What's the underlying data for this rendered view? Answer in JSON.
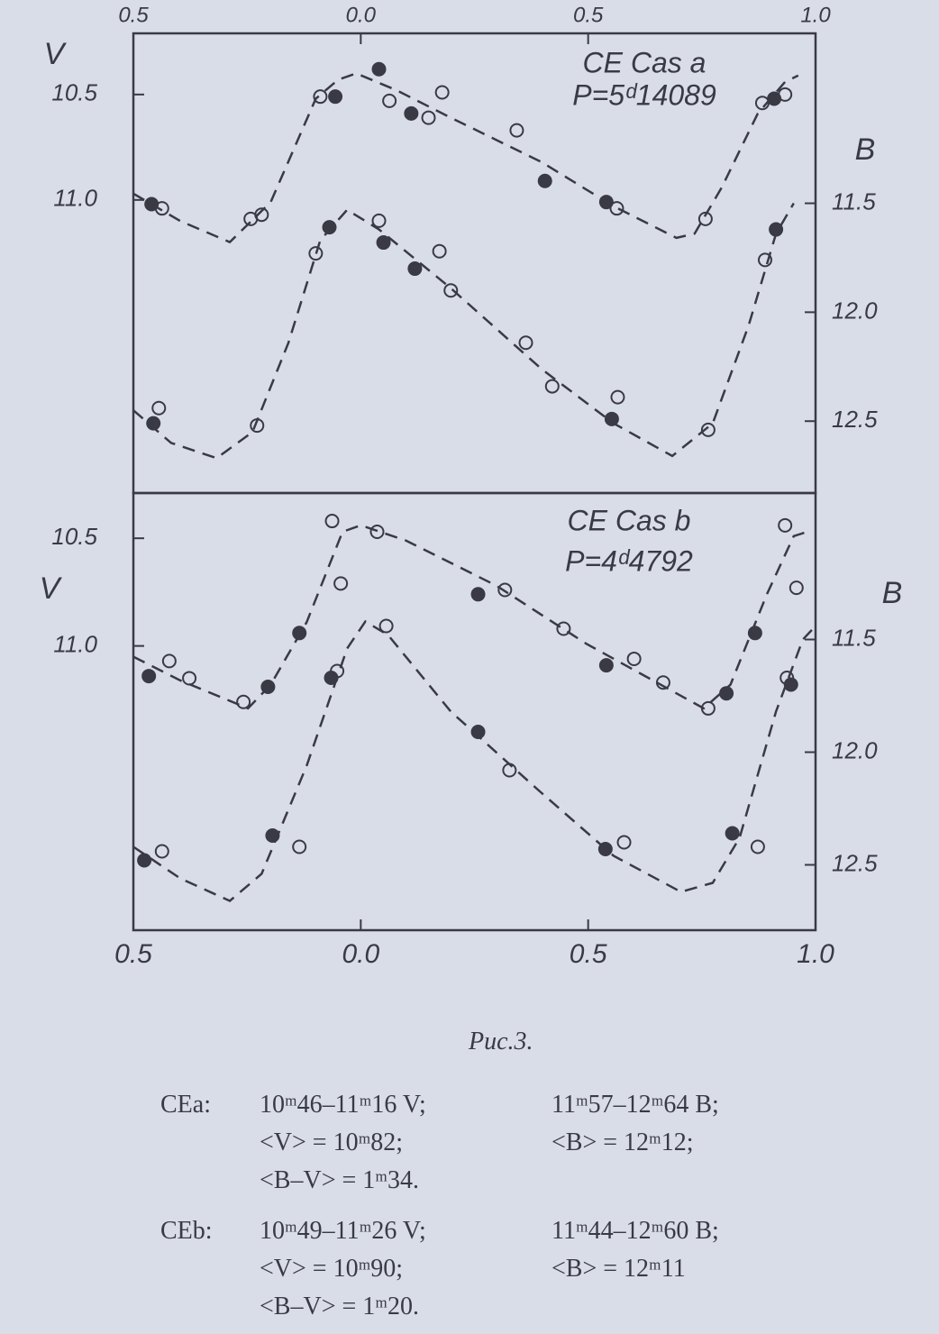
{
  "chart_data": [
    {
      "type": "scatter",
      "xaxis": "top",
      "ylabel": "V",
      "y2label": "B",
      "annotations": [
        "CE Cas a",
        "P=5ᵈ14089"
      ],
      "xlim": [
        -0.5,
        1.0
      ],
      "xticks": [
        {
          "value": -0.5,
          "label": "0.5"
        },
        {
          "value": 0,
          "label": "0.0"
        },
        0.5,
        {
          "value": 1,
          "label": "1.0"
        }
      ],
      "ylim": [
        12.39,
        10.21
      ],
      "yticks": [
        10.5,
        {
          "value": 11,
          "label": "11.0"
        }
      ],
      "y2lim": [
        12.83,
        10.72
      ],
      "y2ticks": [
        11.5,
        {
          "value": 12,
          "label": "12.0"
        },
        12.5
      ],
      "series": [
        {
          "marker": "open",
          "color": "#3a3a44",
          "axis": "y",
          "x": [
            -0.437,
            -0.242,
            -0.218,
            -0.089,
            0.063,
            0.149,
            0.179,
            0.343,
            0.563,
            0.758,
            0.883,
            0.933
          ],
          "values": [
            11.04,
            11.09,
            11.07,
            10.51,
            10.53,
            10.61,
            10.49,
            10.67,
            11.04,
            11.09,
            10.54,
            10.5
          ]
        },
        {
          "marker": "filled",
          "color": "#3a3a44",
          "axis": "y",
          "x": [
            -0.46,
            -0.056,
            0.04,
            0.111,
            0.405,
            0.54,
            0.909
          ],
          "values": [
            11.02,
            10.51,
            10.38,
            10.59,
            10.91,
            11.01,
            10.52
          ]
        },
        {
          "marker": "open",
          "color": "#3a3a44",
          "axis": "y2",
          "x": [
            -0.444,
            -0.228,
            -0.099,
            0.04,
            0.173,
            0.198,
            0.363,
            0.421,
            0.565,
            0.764,
            0.889
          ],
          "values": [
            12.44,
            12.52,
            11.73,
            11.58,
            11.72,
            11.9,
            12.14,
            12.34,
            12.39,
            12.54,
            11.76
          ]
        },
        {
          "marker": "filled",
          "color": "#3a3a44",
          "axis": "y2",
          "x": [
            -0.456,
            -0.069,
            0.05,
            0.119,
            0.552,
            0.913
          ],
          "values": [
            12.51,
            11.61,
            11.68,
            11.8,
            12.49,
            11.62
          ]
        },
        {
          "style": "dashed",
          "color": "#3a3a44",
          "axis": "y",
          "x": [
            -0.5,
            -0.397,
            -0.288,
            -0.198,
            -0.099,
            -0.05,
            -0.01,
            0.079,
            0.198,
            0.397,
            0.556,
            0.694,
            0.734,
            0.794,
            0.873,
            0.933,
            0.962
          ],
          "values": [
            10.97,
            11.1,
            11.2,
            11.01,
            10.52,
            10.43,
            10.4,
            10.48,
            10.61,
            10.82,
            11.03,
            11.18,
            11.16,
            10.94,
            10.59,
            10.44,
            10.41
          ]
        },
        {
          "style": "dashed",
          "color": "#3a3a44",
          "axis": "y2",
          "x": [
            -0.5,
            -0.417,
            -0.317,
            -0.238,
            -0.159,
            -0.089,
            -0.03,
            0.04,
            0.198,
            0.397,
            0.556,
            0.685,
            0.774,
            0.853,
            0.913,
            0.952
          ],
          "values": [
            12.45,
            12.6,
            12.67,
            12.55,
            12.14,
            11.67,
            11.53,
            11.62,
            11.89,
            12.26,
            12.51,
            12.66,
            12.51,
            12.06,
            11.64,
            11.5
          ]
        }
      ]
    },
    {
      "type": "scatter",
      "xaxis": "bottom",
      "ylabel": "V",
      "y2label": "B",
      "annotations": [
        "CE Cas b",
        "P=4ᵈ4792"
      ],
      "xlim": [
        -0.5,
        1.0
      ],
      "xticks": [
        {
          "value": -0.5,
          "label": "0.5"
        },
        {
          "value": 0,
          "label": "0.0"
        },
        0.5,
        {
          "value": 1,
          "label": "1.0"
        }
      ],
      "ylim": [
        12.32,
        10.29
      ],
      "yticks": [
        10.5,
        {
          "value": 11,
          "label": "11.0"
        }
      ],
      "y2lim": [
        12.79,
        10.85
      ],
      "y2ticks": [
        11.5,
        {
          "value": 12,
          "label": "12.0"
        },
        12.5
      ],
      "series": [
        {
          "marker": "open",
          "color": "#3a3a44",
          "axis": "y",
          "x": [
            -0.421,
            -0.377,
            -0.258,
            -0.063,
            -0.044,
            0.036,
            0.317,
            0.446,
            0.601,
            0.665,
            0.764,
            0.933,
            0.958
          ],
          "values": [
            11.07,
            11.15,
            11.26,
            10.42,
            10.71,
            10.47,
            10.74,
            10.92,
            11.06,
            11.17,
            11.29,
            10.44,
            10.73
          ]
        },
        {
          "marker": "filled",
          "color": "#3a3a44",
          "axis": "y",
          "x": [
            -0.466,
            -0.204,
            -0.135,
            0.258,
            0.54,
            0.804,
            0.867
          ],
          "values": [
            11.14,
            11.19,
            10.94,
            10.76,
            11.09,
            11.22,
            10.94
          ]
        },
        {
          "marker": "open",
          "color": "#3a3a44",
          "axis": "y2",
          "x": [
            -0.437,
            -0.135,
            -0.052,
            0.056,
            0.327,
            0.579,
            0.873,
            0.937
          ],
          "values": [
            12.44,
            12.42,
            11.64,
            11.44,
            12.08,
            12.4,
            12.42,
            11.67
          ]
        },
        {
          "marker": "filled",
          "color": "#3a3a44",
          "axis": "y2",
          "x": [
            -0.476,
            -0.194,
            -0.065,
            0.258,
            0.538,
            0.817,
            0.946
          ],
          "values": [
            12.48,
            12.37,
            11.67,
            11.91,
            12.43,
            12.36,
            11.7
          ]
        },
        {
          "style": "dashed",
          "color": "#3a3a44",
          "axis": "y",
          "x": [
            -0.5,
            -0.397,
            -0.248,
            -0.198,
            -0.119,
            -0.04,
            0,
            0.099,
            0.298,
            0.496,
            0.694,
            0.754,
            0.813,
            0.893,
            0.952,
            0.982
          ],
          "values": [
            11.05,
            11.16,
            11.29,
            11.18,
            10.89,
            10.47,
            10.44,
            10.51,
            10.72,
            10.99,
            11.22,
            11.29,
            11.18,
            10.76,
            10.49,
            10.47
          ]
        },
        {
          "style": "dashed",
          "color": "#3a3a44",
          "axis": "y2",
          "x": [
            -0.5,
            -0.397,
            -0.288,
            -0.218,
            -0.119,
            -0.03,
            0.01,
            0.06,
            0.198,
            0.397,
            0.556,
            0.704,
            0.774,
            0.833,
            0.913,
            0.972,
            1.0
          ],
          "values": [
            12.42,
            12.56,
            12.66,
            12.54,
            12.06,
            11.54,
            11.42,
            11.48,
            11.82,
            12.18,
            12.46,
            12.62,
            12.58,
            12.38,
            11.82,
            11.5,
            11.44
          ]
        }
      ]
    }
  ],
  "caption": "Рис.3.",
  "notes": [
    {
      "label": "CEa:",
      "rows": [
        [
          "10ᵐ46–11ᵐ16 V;",
          "11ᵐ57–12ᵐ64 B;"
        ],
        [
          "<V> = 10ᵐ82;",
          "<B> = 12ᵐ12;"
        ],
        [
          "<B–V> = 1ᵐ34."
        ]
      ]
    },
    {
      "label": "CEb:",
      "rows": [
        [
          "10ᵐ49–11ᵐ26 V;",
          "11ᵐ44–12ᵐ60 B;"
        ],
        [
          "<V> = 10ᵐ90;",
          "<B> = 12ᵐ11"
        ],
        [
          "<B–V> = 1ᵐ20."
        ]
      ]
    }
  ]
}
